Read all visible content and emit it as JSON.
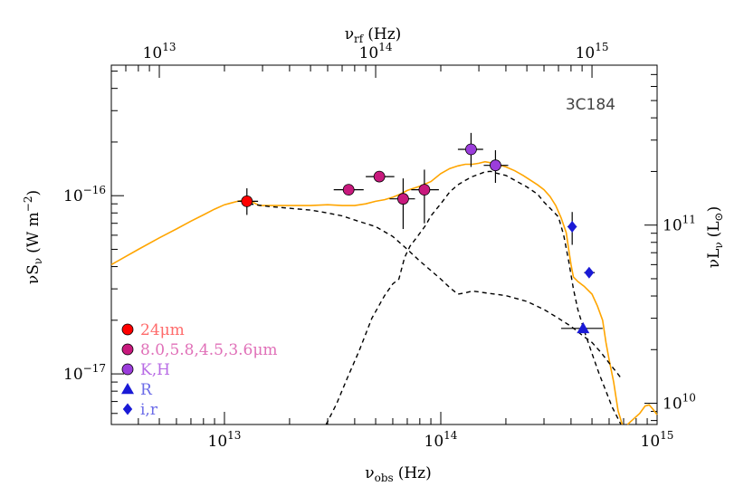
{
  "chart_data": {
    "type": "scatter",
    "title": "",
    "annotation": "3C184",
    "x_axis": {
      "label_base": "ν",
      "label_sub": "obs",
      "label_unit": "(Hz)",
      "scale": "log",
      "range": [
        3000000000000.0,
        1000000000000000.0
      ],
      "major_ticks": [
        {
          "value": 10000000000000.0,
          "base": "10",
          "exp": "13"
        },
        {
          "value": 100000000000000.0,
          "base": "10",
          "exp": "14"
        },
        {
          "value": 1000000000000000.0,
          "base": "10",
          "exp": "15"
        }
      ]
    },
    "x_axis_top": {
      "label_base": "ν",
      "label_sub": "rf",
      "label_unit": "(Hz)",
      "scale": "log",
      "range": [
        6000000000000.0,
        2000000000000000.0
      ],
      "major_ticks": [
        {
          "value": 10000000000000.0,
          "base": "10",
          "exp": "13"
        },
        {
          "value": 100000000000000.0,
          "base": "10",
          "exp": "14"
        },
        {
          "value": 1000000000000000.0,
          "base": "10",
          "exp": "15"
        }
      ]
    },
    "y_axis": {
      "label_base": "νS",
      "label_sub": "ν",
      "label_unit": "(W m",
      "label_unit_sup": "−2",
      "label_unit_end": ")",
      "scale": "log",
      "range": [
        5.2e-18,
        5.4e-16
      ],
      "major_ticks": [
        {
          "value": 1e-17,
          "base": "10",
          "exp": "−17"
        },
        {
          "value": 1e-16,
          "base": "10",
          "exp": "−16"
        }
      ]
    },
    "y_axis_right": {
      "label_base": "νL",
      "label_sub": "ν",
      "label_unit": "(L",
      "label_unit_sub": "⊙",
      "label_unit_end": ")",
      "scale": "log",
      "range": [
        7600000000.0,
        790000000000.0
      ],
      "major_ticks": [
        {
          "value": 10000000000.0,
          "base": "10",
          "exp": "10"
        },
        {
          "value": 100000000000.0,
          "base": "10",
          "exp": "11"
        }
      ]
    },
    "legend_placement": "bottom-left",
    "series": [
      {
        "name": "24μm",
        "marker": "circle",
        "color": "#ff0000",
        "text_color": "#ff6b6b",
        "points": [
          {
            "x": 12700000000000.0,
            "y": 9.3e-17,
            "y_lo": 7.8e-17,
            "y_hi": 1.1e-16,
            "x_lo": 11500000000000.0,
            "x_hi": 14300000000000.0
          }
        ]
      },
      {
        "name": "8.0,5.8,4.5,3.6μm",
        "marker": "circle",
        "color": "#c8197d",
        "text_color": "#e070b8",
        "points": [
          {
            "x": 37500000000000.0,
            "y": 1.08e-16,
            "x_lo": 32000000000000.0,
            "x_hi": 44000000000000.0
          },
          {
            "x": 52000000000000.0,
            "y": 1.28e-16,
            "x_lo": 45000000000000.0,
            "x_hi": 61000000000000.0
          },
          {
            "x": 67000000000000.0,
            "y": 9.6e-17,
            "y_lo": 6.5e-17,
            "y_hi": 1.25e-16,
            "x_lo": 58000000000000.0,
            "x_hi": 76000000000000.0
          },
          {
            "x": 84000000000000.0,
            "y": 1.08e-16,
            "y_lo": 7e-17,
            "y_hi": 1.4e-16,
            "x_lo": 73000000000000.0,
            "x_hi": 98000000000000.0
          }
        ]
      },
      {
        "name": "K,H",
        "marker": "circle",
        "color": "#9b3ddb",
        "text_color": "#b86be5",
        "points": [
          {
            "x": 138000000000000.0,
            "y": 1.82e-16,
            "y_lo": 1.45e-16,
            "y_hi": 2.25e-16,
            "x_lo": 120000000000000.0,
            "x_hi": 157000000000000.0
          },
          {
            "x": 179000000000000.0,
            "y": 1.48e-16,
            "y_lo": 1.18e-16,
            "y_hi": 1.8e-16,
            "x_lo": 158000000000000.0,
            "x_hi": 205000000000000.0
          }
        ]
      },
      {
        "name": "R",
        "marker": "triangle",
        "color": "#1a1ad6",
        "text_color": "#6b6be8",
        "points": [
          {
            "x": 455000000000000.0,
            "y": 1.8e-17,
            "x_lo": 360000000000000.0,
            "x_hi": 560000000000000.0
          }
        ]
      },
      {
        "name": "i,r",
        "marker": "diamond",
        "color": "#1a1ad6",
        "text_color": "#6b6be8",
        "points": [
          {
            "x": 405000000000000.0,
            "y": 6.7e-17,
            "y_lo": 5.3e-17,
            "y_hi": 8.1e-17,
            "x_lo": 385000000000000.0,
            "x_hi": 425000000000000.0
          },
          {
            "x": 485000000000000.0,
            "y": 3.7e-17,
            "x_lo": 460000000000000.0,
            "x_hi": 515000000000000.0
          }
        ]
      }
    ],
    "curves": [
      {
        "name": "",
        "style": "solid",
        "color": "#ffa500",
        "points": [
          [
            3000000000000.0,
            4.1e-17
          ],
          [
            4000000000000.0,
            5e-17
          ],
          [
            5000000000000.0,
            5.8e-17
          ],
          [
            6000000000000.0,
            6.5e-17
          ],
          [
            7000000000000.0,
            7.2e-17
          ],
          [
            8000000000000.0,
            7.8e-17
          ],
          [
            9000000000000.0,
            8.4e-17
          ],
          [
            10000000000000.0,
            8.9e-17
          ],
          [
            11500000000000.0,
            9.3e-17
          ],
          [
            12700000000000.0,
            9.5e-17
          ],
          [
            13500000000000.0,
            9.2e-17
          ],
          [
            14500000000000.0,
            8.8e-17
          ],
          [
            16000000000000.0,
            8.8e-17
          ],
          [
            20000000000000.0,
            8.8e-17
          ],
          [
            25000000000000.0,
            8.8e-17
          ],
          [
            30000000000000.0,
            8.9e-17
          ],
          [
            35000000000000.0,
            8.8e-17
          ],
          [
            40000000000000.0,
            8.8e-17
          ],
          [
            45000000000000.0,
            9e-17
          ],
          [
            50000000000000.0,
            9.3e-17
          ],
          [
            55000000000000.0,
            9.5e-17
          ],
          [
            60000000000000.0,
            9.8e-17
          ],
          [
            65000000000000.0,
            1.02e-16
          ],
          [
            70000000000000.0,
            1.07e-16
          ],
          [
            80000000000000.0,
            1.13e-16
          ],
          [
            90000000000000.0,
            1.2e-16
          ],
          [
            100000000000000.0,
            1.33e-16
          ],
          [
            110000000000000.0,
            1.42e-16
          ],
          [
            120000000000000.0,
            1.47e-16
          ],
          [
            130000000000000.0,
            1.5e-16
          ],
          [
            140000000000000.0,
            1.5e-16
          ],
          [
            150000000000000.0,
            1.52e-16
          ],
          [
            160000000000000.0,
            1.55e-16
          ],
          [
            170000000000000.0,
            1.53e-16
          ],
          [
            180000000000000.0,
            1.52e-16
          ],
          [
            190000000000000.0,
            1.48e-16
          ],
          [
            200000000000000.0,
            1.45e-16
          ],
          [
            220000000000000.0,
            1.38e-16
          ],
          [
            240000000000000.0,
            1.3e-16
          ],
          [
            260000000000000.0,
            1.22e-16
          ],
          [
            280000000000000.0,
            1.15e-16
          ],
          [
            300000000000000.0,
            1.08e-16
          ],
          [
            320000000000000.0,
            9.9e-17
          ],
          [
            340000000000000.0,
            8.8e-17
          ],
          [
            360000000000000.0,
            7.5e-17
          ],
          [
            380000000000000.0,
            6.2e-17
          ],
          [
            390000000000000.0,
            5e-17
          ],
          [
            400000000000000.0,
            4.1e-17
          ],
          [
            410000000000000.0,
            3.5e-17
          ],
          [
            430000000000000.0,
            3.3e-17
          ],
          [
            460000000000000.0,
            3.1e-17
          ],
          [
            500000000000000.0,
            2.8e-17
          ],
          [
            530000000000000.0,
            2.4e-17
          ],
          [
            560000000000000.0,
            2e-17
          ],
          [
            580000000000000.0,
            1.5e-17
          ],
          [
            600000000000000.0,
            1.2e-17
          ],
          [
            630000000000000.0,
            9e-18
          ],
          [
            660000000000000.0,
            6.2e-18
          ],
          [
            690000000000000.0,
            5.2e-18
          ]
        ]
      },
      {
        "name": "",
        "style": "solid",
        "color": "#ffa500",
        "points": [
          [
            730000000000000.0,
            5.2e-18
          ],
          [
            780000000000000.0,
            5.6e-18
          ],
          [
            830000000000000.0,
            6e-18
          ],
          [
            880000000000000.0,
            6.6e-18
          ],
          [
            920000000000000.0,
            6.7e-18
          ],
          [
            960000000000000.0,
            6.3e-18
          ],
          [
            1000000000000000.0,
            5.9e-18
          ]
        ]
      },
      {
        "name": "",
        "style": "dashed",
        "color": "#000000",
        "points": [
          [
            12000000000000.0,
            9.4e-17
          ],
          [
            13000000000000.0,
            9e-17
          ],
          [
            16000000000000.0,
            8.7e-17
          ],
          [
            20000000000000.0,
            8.5e-17
          ],
          [
            25000000000000.0,
            8.3e-17
          ],
          [
            30000000000000.0,
            8e-17
          ],
          [
            35000000000000.0,
            7.7e-17
          ],
          [
            40000000000000.0,
            7.3e-17
          ],
          [
            50000000000000.0,
            6.7e-17
          ],
          [
            60000000000000.0,
            5.9e-17
          ],
          [
            70000000000000.0,
            5e-17
          ],
          [
            80000000000000.0,
            4.3e-17
          ],
          [
            90000000000000.0,
            3.8e-17
          ],
          [
            100000000000000.0,
            3.4e-17
          ],
          [
            110000000000000.0,
            3.05e-17
          ],
          [
            120000000000000.0,
            2.8e-17
          ],
          [
            130000000000000.0,
            2.85e-17
          ],
          [
            140000000000000.0,
            2.92e-17
          ],
          [
            160000000000000.0,
            2.85e-17
          ],
          [
            200000000000000.0,
            2.75e-17
          ],
          [
            250000000000000.0,
            2.55e-17
          ],
          [
            300000000000000.0,
            2.3e-17
          ],
          [
            350000000000000.0,
            2.05e-17
          ],
          [
            400000000000000.0,
            1.85e-17
          ],
          [
            450000000000000.0,
            1.65e-17
          ],
          [
            500000000000000.0,
            1.5e-17
          ],
          [
            550000000000000.0,
            1.32e-17
          ],
          [
            600000000000000.0,
            1.15e-17
          ],
          [
            650000000000000.0,
            1.02e-17
          ],
          [
            680000000000000.0,
            9.5e-18
          ]
        ]
      },
      {
        "name": "",
        "style": "dashed",
        "color": "#000000",
        "points": [
          [
            29500000000000.0,
            5.2e-18
          ],
          [
            33000000000000.0,
            6.8e-18
          ],
          [
            37000000000000.0,
            9.5e-18
          ],
          [
            42000000000000.0,
            1.35e-17
          ],
          [
            48000000000000.0,
            2.05e-17
          ],
          [
            55000000000000.0,
            2.75e-17
          ],
          [
            60000000000000.0,
            3.2e-17
          ],
          [
            64000000000000.0,
            3.4e-17
          ],
          [
            68000000000000.0,
            4.5e-17
          ],
          [
            72000000000000.0,
            5.2e-17
          ],
          [
            78000000000000.0,
            5.9e-17
          ],
          [
            85000000000000.0,
            6.8e-17
          ],
          [
            90000000000000.0,
            7.7e-17
          ],
          [
            100000000000000.0,
            9e-17
          ],
          [
            110000000000000.0,
            1.05e-16
          ],
          [
            120000000000000.0,
            1.15e-16
          ],
          [
            130000000000000.0,
            1.22e-16
          ],
          [
            140000000000000.0,
            1.28e-16
          ],
          [
            150000000000000.0,
            1.32e-16
          ],
          [
            160000000000000.0,
            1.36e-16
          ],
          [
            170000000000000.0,
            1.37e-16
          ],
          [
            180000000000000.0,
            1.34e-16
          ],
          [
            200000000000000.0,
            1.3e-16
          ],
          [
            220000000000000.0,
            1.22e-16
          ],
          [
            250000000000000.0,
            1.12e-16
          ],
          [
            280000000000000.0,
            1.02e-16
          ],
          [
            300000000000000.0,
            9.2e-17
          ],
          [
            330000000000000.0,
            8.2e-17
          ],
          [
            350000000000000.0,
            7.6e-17
          ],
          [
            370000000000000.0,
            6e-17
          ],
          [
            390000000000000.0,
            4.3e-17
          ],
          [
            410000000000000.0,
            3e-17
          ],
          [
            430000000000000.0,
            2.3e-17
          ],
          [
            460000000000000.0,
            1.75e-17
          ],
          [
            500000000000000.0,
            1.3e-17
          ],
          [
            540000000000000.0,
            1e-17
          ],
          [
            580000000000000.0,
            8e-18
          ],
          [
            620000000000000.0,
            6.5e-18
          ],
          [
            660000000000000.0,
            5.6e-18
          ],
          [
            680000000000000.0,
            5.2e-18
          ]
        ]
      }
    ]
  }
}
